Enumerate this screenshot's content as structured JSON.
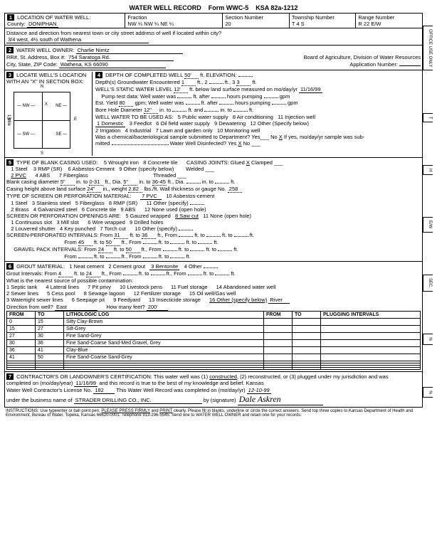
{
  "form": {
    "title": "WATER WELL RECORD",
    "code": "Form WWC-5",
    "ksa": "KSA 82a-1212"
  },
  "loc": {
    "county": "DONIPHAN",
    "fraction": "NW ¼   NW ¼   NE ¼",
    "section": "20",
    "township": "T   4   S",
    "range": "R   22   E/W",
    "dist": "3/4 west, 4½ south of Wathena"
  },
  "owner": {
    "name": "Charlie Nimtz",
    "addr": "754 Saratoga Rd.",
    "csz": "Wathena, KS  66090",
    "board": "Board of Agriculture, Division of Water Resources"
  },
  "depth": {
    "completed": "50'",
    "gw_depth": "1",
    "gw_elev": "3",
    "static": "12'",
    "date": "11/16/99",
    "yield": "80",
    "borehole": "12\""
  },
  "casing": {
    "dia": "5\"",
    "to": "0-31",
    "dia2": "5\"",
    "to2": "36-45",
    "height": "24\"",
    "weight": "2.82",
    "gauge": ".258"
  },
  "screen": {
    "type": "7 PVC",
    "from1": "31",
    "to1": "36",
    "from2": "45",
    "to2": "50",
    "from3": "24",
    "to3": "50"
  },
  "grout": {
    "from": "4",
    "to": "24",
    "sel": "3 Bentonite"
  },
  "contam": {
    "dir": "East",
    "feet": "200'",
    "src": "River"
  },
  "log": [
    {
      "f": "0",
      "t": "15",
      "d": "Silty Clay-Brown"
    },
    {
      "f": "15",
      "t": "27",
      "d": "Silt-Grey"
    },
    {
      "f": "27",
      "t": "30",
      "d": "Fine Sand-Grey"
    },
    {
      "f": "30",
      "t": "36",
      "d": "Fine Sand-Coarse Sand-Med Gravel, Grey"
    },
    {
      "f": "36",
      "t": "41",
      "d": "Clay-Blue"
    },
    {
      "f": "41",
      "t": "50",
      "d": "Fine Sand-Coarse Sand-Grey"
    }
  ],
  "cert": {
    "date": "11/16/99",
    "lic": "182",
    "biz": "STRADER DRILLING CO., INC.",
    "sigdate": "12-10-99"
  }
}
